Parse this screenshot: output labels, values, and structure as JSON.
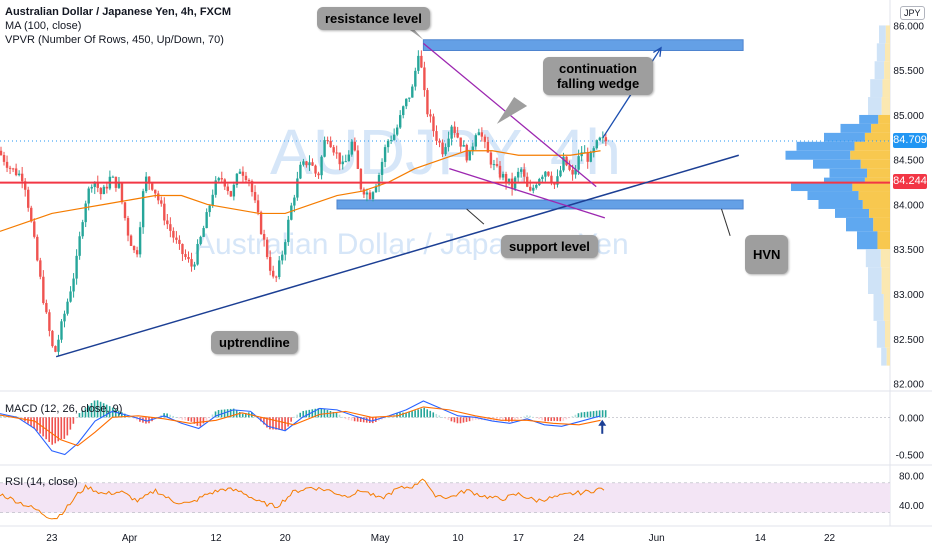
{
  "header": {
    "symbol_line": "Australian Dollar / Japanese Yen, 4h, FXCM",
    "ma_label": "MA (100, close)",
    "vpvr_label": "VPVR (Number Of Rows, 450, Up/Down, 70)",
    "currency": "JPY",
    "watermark_ticker": "AUDJPY, 4h",
    "watermark_name": "Australian Dollar / Japanese Yen"
  },
  "annotations": {
    "resistance": "resistance level",
    "wedge": "continuation falling wedge",
    "support": "support level",
    "uptrend": "uptrendline",
    "hvn": "HVN"
  },
  "price_tags": {
    "current": "84.709",
    "support_line": "84.244",
    "current_color": "#2196f3",
    "support_color": "#f23645"
  },
  "panes": {
    "macd_label": "MACD (12, 26, close, 9)",
    "rsi_label": "RSI (14, close)"
  },
  "chart_data": {
    "type": "candlestick",
    "title": "Australian Dollar / Japanese Yen, 4h, FXCM",
    "price_axis": {
      "ticks": [
        "86.000",
        "85.500",
        "85.000",
        "84.500",
        "84.000",
        "83.500",
        "83.000",
        "82.500",
        "82.000"
      ],
      "tick_values": [
        86.0,
        85.5,
        85.0,
        84.5,
        84.0,
        83.5,
        83.0,
        82.5,
        82.0
      ],
      "range": [
        81.95,
        86.15
      ]
    },
    "time_axis": {
      "labels": [
        "23",
        "Apr",
        "12",
        "20",
        "May",
        "10",
        "17",
        "24",
        "Jun",
        "14",
        "22"
      ],
      "label_days": [
        23,
        32,
        42,
        50,
        61,
        70,
        77,
        84,
        93,
        105,
        113
      ],
      "range_days": [
        17,
        120
      ]
    },
    "candles_days": [
      17,
      87
    ],
    "price_path": [
      [
        17,
        84.6
      ],
      [
        18.5,
        84.4
      ],
      [
        20,
        84.3
      ],
      [
        21,
        83.7
      ],
      [
        22.5,
        82.8
      ],
      [
        23.5,
        82.3
      ],
      [
        24.5,
        82.7
      ],
      [
        26,
        83.3
      ],
      [
        27,
        84.0
      ],
      [
        28,
        84.3
      ],
      [
        29,
        84.1
      ],
      [
        30,
        84.3
      ],
      [
        31,
        84.2
      ],
      [
        32,
        83.7
      ],
      [
        33,
        83.4
      ],
      [
        34,
        84.3
      ],
      [
        35,
        84.2
      ],
      [
        36.5,
        83.8
      ],
      [
        38,
        83.5
      ],
      [
        39.5,
        83.3
      ],
      [
        41,
        83.8
      ],
      [
        42,
        84.2
      ],
      [
        43,
        84.3
      ],
      [
        44,
        84.1
      ],
      [
        45,
        84.4
      ],
      [
        46,
        84.3
      ],
      [
        47,
        83.9
      ],
      [
        48,
        83.5
      ],
      [
        49,
        83.1
      ],
      [
        50,
        83.5
      ],
      [
        51,
        84.0
      ],
      [
        52,
        84.4
      ],
      [
        53,
        84.5
      ],
      [
        54,
        84.3
      ],
      [
        55,
        84.8
      ],
      [
        56,
        84.6
      ],
      [
        57,
        84.4
      ],
      [
        58,
        84.7
      ],
      [
        59,
        84.2
      ],
      [
        60,
        84.1
      ],
      [
        61,
        84.3
      ],
      [
        62,
        84.7
      ],
      [
        63,
        84.8
      ],
      [
        64,
        85.1
      ],
      [
        65,
        85.3
      ],
      [
        65.7,
        85.75
      ],
      [
        66.5,
        85.1
      ],
      [
        67.5,
        84.8
      ],
      [
        68.5,
        84.6
      ],
      [
        69.5,
        84.9
      ],
      [
        70.5,
        84.7
      ],
      [
        71.5,
        84.5
      ],
      [
        72.5,
        84.9
      ],
      [
        73.5,
        84.6
      ],
      [
        74.5,
        84.4
      ],
      [
        75.5,
        84.3
      ],
      [
        76.5,
        84.2
      ],
      [
        77.5,
        84.4
      ],
      [
        78.5,
        84.1
      ],
      [
        79.5,
        84.3
      ],
      [
        80.5,
        84.4
      ],
      [
        81.5,
        84.2
      ],
      [
        82.5,
        84.5
      ],
      [
        83.5,
        84.3
      ],
      [
        84.5,
        84.6
      ],
      [
        85.5,
        84.5
      ],
      [
        86.5,
        84.71
      ]
    ],
    "ma_path": [
      [
        17,
        83.7
      ],
      [
        20,
        83.8
      ],
      [
        23,
        83.9
      ],
      [
        26,
        83.95
      ],
      [
        29,
        84.0
      ],
      [
        32,
        84.05
      ],
      [
        35,
        84.1
      ],
      [
        38,
        84.1
      ],
      [
        41,
        84.0
      ],
      [
        44,
        83.95
      ],
      [
        47,
        83.9
      ],
      [
        50,
        83.9
      ],
      [
        53,
        84.0
      ],
      [
        56,
        84.1
      ],
      [
        59,
        84.15
      ],
      [
        62,
        84.25
      ],
      [
        65,
        84.4
      ],
      [
        68,
        84.5
      ],
      [
        71,
        84.6
      ],
      [
        74,
        84.6
      ],
      [
        77,
        84.55
      ],
      [
        80,
        84.55
      ],
      [
        83,
        84.55
      ],
      [
        86.5,
        84.6
      ]
    ],
    "resistance_zone": {
      "from_day": 66,
      "to_day": 103,
      "low": 85.72,
      "high": 85.84
    },
    "support_zone": {
      "from_day": 56,
      "to_day": 103,
      "low": 83.95,
      "high": 84.05
    },
    "support_line": {
      "price": 84.244
    },
    "current_price": 84.709,
    "uptrend_line": [
      [
        23.5,
        82.3
      ],
      [
        102.5,
        84.55
      ]
    ],
    "wedge_upper": [
      [
        66,
        85.8
      ],
      [
        86,
        84.2
      ]
    ],
    "wedge_lower": [
      [
        69,
        84.4
      ],
      [
        87,
        83.85
      ]
    ],
    "projection_arrow": [
      [
        86.8,
        84.75
      ],
      [
        93.5,
        85.75
      ]
    ],
    "hvn_pointer": [
      [
        100.5,
        83.95
      ],
      [
        101.5,
        83.65
      ]
    ],
    "volume_profile": [
      [
        86.0,
        0.1
      ],
      [
        85.8,
        0.12
      ],
      [
        85.6,
        0.14
      ],
      [
        85.4,
        0.18
      ],
      [
        85.2,
        0.2
      ],
      [
        85.0,
        0.28
      ],
      [
        84.9,
        0.45
      ],
      [
        84.8,
        0.6
      ],
      [
        84.7,
        0.85
      ],
      [
        84.6,
        0.95
      ],
      [
        84.5,
        0.7
      ],
      [
        84.4,
        0.55
      ],
      [
        84.3,
        0.6
      ],
      [
        84.24,
        0.9
      ],
      [
        84.15,
        0.75
      ],
      [
        84.05,
        0.65
      ],
      [
        83.95,
        0.5
      ],
      [
        83.85,
        0.4
      ],
      [
        83.7,
        0.3
      ],
      [
        83.5,
        0.22
      ],
      [
        83.3,
        0.2
      ],
      [
        83.0,
        0.15
      ],
      [
        82.7,
        0.12
      ],
      [
        82.4,
        0.08
      ]
    ],
    "macd": {
      "ticks": [
        "0.000",
        "-0.500"
      ],
      "tick_values": [
        0.0,
        -0.5
      ],
      "range": [
        -0.6,
        0.3
      ],
      "macd_path": [
        [
          17,
          0.05
        ],
        [
          19,
          0.0
        ],
        [
          21,
          -0.15
        ],
        [
          23,
          -0.45
        ],
        [
          24.5,
          -0.5
        ],
        [
          26,
          -0.35
        ],
        [
          28,
          -0.05
        ],
        [
          30,
          0.08
        ],
        [
          32,
          0.02
        ],
        [
          34,
          -0.05
        ],
        [
          36,
          0.02
        ],
        [
          38,
          -0.08
        ],
        [
          40,
          -0.15
        ],
        [
          42,
          0.02
        ],
        [
          44,
          0.1
        ],
        [
          46,
          0.08
        ],
        [
          48,
          -0.12
        ],
        [
          50,
          -0.18
        ],
        [
          52,
          0.0
        ],
        [
          54,
          0.12
        ],
        [
          56,
          0.1
        ],
        [
          58,
          0.02
        ],
        [
          60,
          -0.05
        ],
        [
          62,
          0.02
        ],
        [
          64,
          0.1
        ],
        [
          66,
          0.22
        ],
        [
          68,
          0.12
        ],
        [
          70,
          0.02
        ],
        [
          72,
          0.0
        ],
        [
          74,
          -0.05
        ],
        [
          76,
          -0.08
        ],
        [
          78,
          -0.02
        ],
        [
          80,
          -0.1
        ],
        [
          82,
          -0.12
        ],
        [
          84,
          -0.06
        ],
        [
          86.5,
          0.02
        ]
      ],
      "signal_path": [
        [
          17,
          0.03
        ],
        [
          21,
          -0.05
        ],
        [
          24,
          -0.3
        ],
        [
          26,
          -0.38
        ],
        [
          28,
          -0.2
        ],
        [
          30,
          0.0
        ],
        [
          33,
          0.02
        ],
        [
          36,
          -0.02
        ],
        [
          39,
          -0.08
        ],
        [
          42,
          -0.04
        ],
        [
          45,
          0.06
        ],
        [
          48,
          -0.02
        ],
        [
          51,
          -0.1
        ],
        [
          54,
          0.04
        ],
        [
          57,
          0.08
        ],
        [
          60,
          0.0
        ],
        [
          63,
          0.02
        ],
        [
          66,
          0.14
        ],
        [
          69,
          0.1
        ],
        [
          72,
          0.02
        ],
        [
          75,
          -0.04
        ],
        [
          78,
          -0.04
        ],
        [
          81,
          -0.08
        ],
        [
          84,
          -0.1
        ],
        [
          86.5,
          -0.04
        ]
      ],
      "arrow_day": 86.7
    },
    "rsi": {
      "ticks": [
        "80.00",
        "40.00"
      ],
      "tick_values": [
        80,
        40
      ],
      "range": [
        20,
        90
      ],
      "band": [
        30,
        70
      ],
      "path": [
        [
          17,
          55
        ],
        [
          19,
          45
        ],
        [
          21,
          35
        ],
        [
          22.5,
          25
        ],
        [
          23.5,
          22
        ],
        [
          25,
          40
        ],
        [
          26,
          55
        ],
        [
          27,
          65
        ],
        [
          29,
          55
        ],
        [
          31,
          58
        ],
        [
          33,
          45
        ],
        [
          35,
          60
        ],
        [
          37,
          45
        ],
        [
          39,
          42
        ],
        [
          41,
          55
        ],
        [
          43,
          62
        ],
        [
          45,
          58
        ],
        [
          47,
          44
        ],
        [
          49,
          38
        ],
        [
          51,
          58
        ],
        [
          53,
          64
        ],
        [
          55,
          60
        ],
        [
          57,
          52
        ],
        [
          59,
          60
        ],
        [
          61,
          48
        ],
        [
          63,
          62
        ],
        [
          65,
          66
        ],
        [
          66,
          78
        ],
        [
          67,
          55
        ],
        [
          69,
          50
        ],
        [
          71,
          60
        ],
        [
          73,
          52
        ],
        [
          75,
          48
        ],
        [
          77,
          55
        ],
        [
          79,
          46
        ],
        [
          81,
          50
        ],
        [
          83,
          55
        ],
        [
          85,
          58
        ],
        [
          86.5,
          62
        ]
      ]
    }
  }
}
